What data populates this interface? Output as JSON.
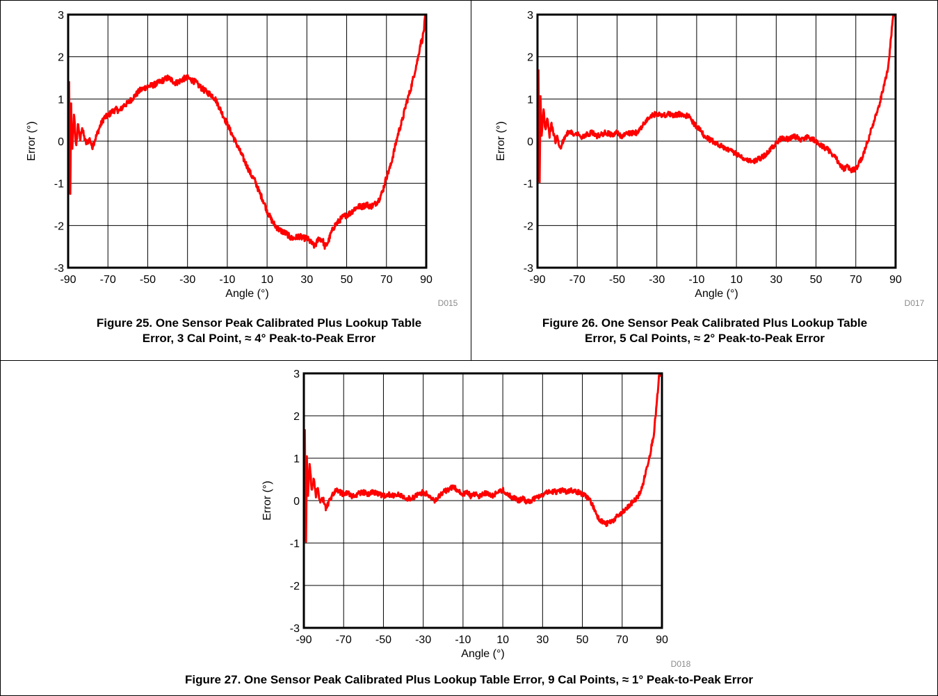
{
  "colors": {
    "series": "#ff0000",
    "grid": "#000000",
    "background": "#ffffff"
  },
  "figures": [
    {
      "id": "fig25",
      "caption_line1": "Figure 25. One Sensor Peak Calibrated Plus Lookup Table",
      "caption_line2": "Error, 3 Cal Point, ≈ 4° Peak-to-Peak Error",
      "code": "D015"
    },
    {
      "id": "fig26",
      "caption_line1": "Figure 26. One Sensor Peak Calibrated Plus Lookup Table",
      "caption_line2": "Error, 5 Cal Points, ≈ 2° Peak-to-Peak Error",
      "code": "D017"
    },
    {
      "id": "fig27",
      "caption_line1": "Figure 27. One Sensor Peak Calibrated Plus Lookup Table Error, 9 Cal Points, ≈ 1° Peak-to-Peak Error",
      "caption_line2": "",
      "code": "D018"
    }
  ],
  "chart_data": [
    {
      "type": "line",
      "xlabel": "Angle (°)",
      "ylabel": "Error (°)",
      "xlim": [
        -90,
        90
      ],
      "ylim": [
        -3,
        3
      ],
      "xticks": [
        -90,
        -70,
        -50,
        -30,
        -10,
        10,
        30,
        50,
        70,
        90
      ],
      "yticks": [
        -3,
        -2,
        -1,
        0,
        1,
        2,
        3
      ],
      "grid": true,
      "noise": 0.07,
      "series": [
        {
          "color": "#ff0000",
          "x": [
            -89.5,
            -89,
            -88.5,
            -88,
            -87,
            -86,
            -85,
            -84,
            -83,
            -82,
            -81,
            -80,
            -79,
            -78,
            -76,
            -74,
            -72,
            -70,
            -68,
            -66,
            -64,
            -62,
            -60,
            -58,
            -56,
            -54,
            -52,
            -50,
            -48,
            -46,
            -44,
            -42,
            -40,
            -38,
            -36,
            -34,
            -32,
            -30,
            -28,
            -26,
            -24,
            -22,
            -20,
            -18,
            -16,
            -14,
            -12,
            -10,
            -8,
            -6,
            -4,
            -2,
            0,
            2,
            4,
            6,
            8,
            10,
            12,
            14,
            16,
            18,
            20,
            22,
            24,
            26,
            28,
            30,
            32,
            34,
            36,
            38,
            39,
            40,
            41,
            42,
            44,
            46,
            48,
            50,
            52,
            54,
            56,
            58,
            60,
            62,
            64,
            66,
            68,
            70,
            72,
            74,
            76,
            78,
            80,
            82,
            84,
            86,
            87,
            88,
            88.5,
            89,
            89.5
          ],
          "y": [
            1.4,
            -1.85,
            0.9,
            -0.3,
            0.7,
            -0.2,
            0.45,
            0.0,
            0.35,
            0.1,
            -0.05,
            0.0,
            0.05,
            -0.15,
            0.1,
            0.35,
            0.55,
            0.6,
            0.7,
            0.75,
            0.72,
            0.85,
            0.9,
            1.0,
            1.1,
            1.2,
            1.25,
            1.3,
            1.32,
            1.35,
            1.4,
            1.45,
            1.5,
            1.45,
            1.38,
            1.42,
            1.48,
            1.5,
            1.45,
            1.4,
            1.3,
            1.22,
            1.15,
            1.1,
            1.0,
            0.8,
            0.6,
            0.4,
            0.2,
            0.0,
            -0.2,
            -0.4,
            -0.6,
            -0.8,
            -0.95,
            -1.2,
            -1.4,
            -1.65,
            -1.85,
            -2.0,
            -2.1,
            -2.15,
            -2.2,
            -2.3,
            -2.3,
            -2.25,
            -2.3,
            -2.3,
            -2.4,
            -2.5,
            -2.3,
            -2.35,
            -2.5,
            -2.45,
            -2.35,
            -2.2,
            -2.0,
            -1.9,
            -1.8,
            -1.75,
            -1.7,
            -1.6,
            -1.55,
            -1.55,
            -1.5,
            -1.55,
            -1.5,
            -1.4,
            -1.2,
            -0.85,
            -0.6,
            -0.2,
            0.2,
            0.5,
            0.9,
            1.2,
            1.6,
            2.0,
            2.3,
            2.4,
            2.55,
            2.7,
            3.0
          ]
        }
      ]
    },
    {
      "type": "line",
      "xlabel": "Angle (°)",
      "ylabel": "Error (°)",
      "xlim": [
        -90,
        90
      ],
      "ylim": [
        -3,
        3
      ],
      "xticks": [
        -90,
        -70,
        -50,
        -30,
        -10,
        10,
        30,
        50,
        70,
        90
      ],
      "yticks": [
        -3,
        -2,
        -1,
        0,
        1,
        2,
        3
      ],
      "grid": true,
      "noise": 0.06,
      "series": [
        {
          "color": "#ff0000",
          "x": [
            -89.5,
            -89,
            -88.5,
            -88,
            -87,
            -86,
            -85,
            -84,
            -83,
            -82,
            -81,
            -80,
            -79,
            -78,
            -76,
            -74,
            -72,
            -70,
            -68,
            -66,
            -64,
            -62,
            -60,
            -58,
            -56,
            -54,
            -52,
            -50,
            -48,
            -46,
            -44,
            -42,
            -40,
            -38,
            -36,
            -34,
            -32,
            -30,
            -28,
            -26,
            -24,
            -22,
            -20,
            -18,
            -16,
            -14,
            -12,
            -10,
            -8,
            -6,
            -4,
            -2,
            0,
            2,
            4,
            6,
            8,
            10,
            12,
            14,
            16,
            18,
            20,
            22,
            24,
            26,
            28,
            30,
            32,
            34,
            36,
            38,
            40,
            42,
            44,
            46,
            48,
            50,
            52,
            54,
            56,
            58,
            60,
            62,
            64,
            66,
            68,
            70,
            72,
            74,
            76,
            78,
            80,
            82,
            84,
            86,
            87,
            88,
            88.5,
            89,
            89.5
          ],
          "y": [
            1.7,
            -1.5,
            1.1,
            0.1,
            0.8,
            0.2,
            0.6,
            0.1,
            0.4,
            0.2,
            0.0,
            0.1,
            -0.2,
            -0.1,
            0.1,
            0.25,
            0.15,
            0.2,
            0.1,
            0.15,
            0.18,
            0.2,
            0.12,
            0.15,
            0.2,
            0.18,
            0.15,
            0.2,
            0.12,
            0.15,
            0.18,
            0.2,
            0.2,
            0.3,
            0.45,
            0.55,
            0.62,
            0.65,
            0.6,
            0.62,
            0.65,
            0.6,
            0.62,
            0.65,
            0.6,
            0.6,
            0.45,
            0.35,
            0.25,
            0.1,
            0.05,
            0.0,
            -0.05,
            -0.1,
            -0.15,
            -0.2,
            -0.25,
            -0.3,
            -0.35,
            -0.4,
            -0.45,
            -0.48,
            -0.45,
            -0.4,
            -0.35,
            -0.25,
            -0.15,
            -0.05,
            0.05,
            0.08,
            0.05,
            0.1,
            0.1,
            0.05,
            0.05,
            0.1,
            0.05,
            0.0,
            -0.1,
            -0.15,
            -0.2,
            -0.3,
            -0.4,
            -0.55,
            -0.65,
            -0.6,
            -0.7,
            -0.65,
            -0.5,
            -0.3,
            0.0,
            0.3,
            0.6,
            0.9,
            1.3,
            1.7,
            2.1,
            2.6,
            2.9,
            3.0,
            3.0
          ]
        }
      ]
    },
    {
      "type": "line",
      "xlabel": "Angle (°)",
      "ylabel": "Error (°)",
      "xlim": [
        -90,
        90
      ],
      "ylim": [
        -3,
        3
      ],
      "xticks": [
        -90,
        -70,
        -50,
        -30,
        -10,
        10,
        30,
        50,
        70,
        90
      ],
      "yticks": [
        -3,
        -2,
        -1,
        0,
        1,
        2,
        3
      ],
      "grid": true,
      "noise": 0.06,
      "series": [
        {
          "color": "#ff0000",
          "x": [
            -89.5,
            -89,
            -88.5,
            -88,
            -87,
            -86,
            -85,
            -84,
            -83,
            -82,
            -81,
            -80,
            -79,
            -78,
            -76,
            -74,
            -72,
            -70,
            -68,
            -66,
            -64,
            -62,
            -60,
            -58,
            -56,
            -54,
            -52,
            -50,
            -48,
            -46,
            -44,
            -42,
            -40,
            -38,
            -36,
            -34,
            -32,
            -30,
            -28,
            -26,
            -24,
            -22,
            -20,
            -18,
            -16,
            -14,
            -12,
            -10,
            -8,
            -6,
            -4,
            -2,
            0,
            2,
            4,
            6,
            8,
            10,
            12,
            14,
            16,
            18,
            20,
            22,
            24,
            26,
            28,
            30,
            32,
            34,
            36,
            38,
            40,
            42,
            44,
            46,
            48,
            50,
            52,
            54,
            56,
            58,
            60,
            62,
            64,
            66,
            68,
            70,
            72,
            74,
            76,
            78,
            80,
            82,
            84,
            86,
            87,
            88,
            88.5,
            89,
            89.5
          ],
          "y": [
            1.7,
            -1.5,
            1.1,
            0.1,
            0.9,
            0.2,
            0.5,
            0.1,
            0.3,
            0.0,
            0.05,
            0.0,
            -0.2,
            -0.1,
            0.1,
            0.25,
            0.2,
            0.15,
            0.2,
            0.1,
            0.12,
            0.18,
            0.2,
            0.15,
            0.2,
            0.18,
            0.15,
            0.1,
            0.15,
            0.12,
            0.1,
            0.15,
            0.1,
            0.05,
            0.05,
            0.1,
            0.15,
            0.2,
            0.15,
            0.05,
            0.0,
            0.1,
            0.2,
            0.25,
            0.3,
            0.3,
            0.2,
            0.15,
            0.2,
            0.1,
            0.15,
            0.1,
            0.15,
            0.18,
            0.1,
            0.15,
            0.2,
            0.25,
            0.15,
            0.1,
            0.05,
            0.0,
            0.05,
            -0.02,
            0.0,
            0.05,
            0.1,
            0.15,
            0.2,
            0.2,
            0.22,
            0.2,
            0.25,
            0.2,
            0.25,
            0.22,
            0.2,
            0.15,
            0.1,
            0.0,
            -0.2,
            -0.4,
            -0.5,
            -0.55,
            -0.5,
            -0.45,
            -0.35,
            -0.3,
            -0.2,
            -0.1,
            0.0,
            0.1,
            0.3,
            0.7,
            1.1,
            1.6,
            2.1,
            2.6,
            2.9,
            3.0,
            3.0
          ]
        }
      ]
    }
  ]
}
